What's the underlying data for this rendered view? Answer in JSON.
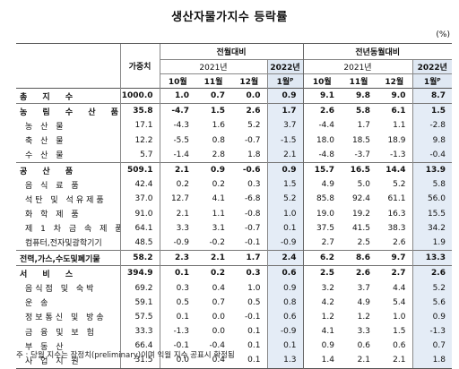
{
  "title": "생산자물가지수 등락률",
  "unit": "(%)",
  "header": {
    "weight": "가중치",
    "mom": "전월대비",
    "yoy": "전년동월대비",
    "y2021": "2021년",
    "y2022": "2022년",
    "months": [
      "10월",
      "11월",
      "12월"
    ],
    "jan_mom": "1월ᴾ",
    "jan_yoy": "1월ᴾ"
  },
  "rows": [
    {
      "name": "총 지 수",
      "w": "1000.0",
      "m": [
        "1.0",
        "0.7",
        "0.0",
        "0.9"
      ],
      "y": [
        "9.1",
        "9.8",
        "9.0",
        "8.7"
      ]
    },
    {
      "name": "농 림 수 산 품",
      "w": "35.8",
      "m": [
        "-4.7",
        "1.5",
        "2.6",
        "1.7"
      ],
      "y": [
        "2.6",
        "5.8",
        "6.1",
        "1.5"
      ]
    },
    {
      "name": "농 산 물",
      "w": "17.1",
      "m": [
        "-4.3",
        "1.6",
        "5.2",
        "3.7"
      ],
      "y": [
        "-4.4",
        "1.7",
        "1.1",
        "-2.8"
      ]
    },
    {
      "name": "축 산 물",
      "w": "12.2",
      "m": [
        "-5.5",
        "0.8",
        "-0.7",
        "-1.5"
      ],
      "y": [
        "18.0",
        "18.5",
        "18.9",
        "9.8"
      ]
    },
    {
      "name": "수 산 물",
      "w": "5.7",
      "m": [
        "-1.4",
        "2.8",
        "1.8",
        "2.1"
      ],
      "y": [
        "-4.8",
        "-3.7",
        "-1.3",
        "-0.4"
      ]
    },
    {
      "name": "공 산 품",
      "w": "509.1",
      "m": [
        "2.1",
        "0.9",
        "-0.6",
        "0.9"
      ],
      "y": [
        "15.7",
        "16.5",
        "14.4",
        "13.9"
      ]
    },
    {
      "name": "음 식 료 품",
      "w": "42.4",
      "m": [
        "0.2",
        "0.2",
        "0.3",
        "1.5"
      ],
      "y": [
        "4.9",
        "5.0",
        "5.2",
        "5.8"
      ]
    },
    {
      "name": "석탄 및 석유제품",
      "w": "37.0",
      "m": [
        "12.7",
        "4.1",
        "-6.8",
        "5.2"
      ],
      "y": [
        "85.8",
        "92.4",
        "61.1",
        "56.0"
      ]
    },
    {
      "name": "화 학 제 품",
      "w": "91.0",
      "m": [
        "2.1",
        "1.1",
        "-0.8",
        "1.0"
      ],
      "y": [
        "19.0",
        "19.2",
        "16.3",
        "15.5"
      ]
    },
    {
      "name": "제 1 차 금 속 제 품",
      "w": "64.1",
      "m": [
        "3.3",
        "3.1",
        "-0.7",
        "0.1"
      ],
      "y": [
        "37.5",
        "41.5",
        "38.3",
        "34.2"
      ]
    },
    {
      "name": "컴퓨터,전자및광학기기",
      "w": "48.5",
      "m": [
        "-0.9",
        "-0.2",
        "-0.1",
        "-0.9"
      ],
      "y": [
        "2.7",
        "2.5",
        "2.6",
        "1.9"
      ]
    },
    {
      "name": "전력,가스,수도및폐기물",
      "w": "58.2",
      "m": [
        "2.3",
        "2.1",
        "1.7",
        "2.4"
      ],
      "y": [
        "6.2",
        "8.6",
        "9.7",
        "13.3"
      ]
    },
    {
      "name": "서 비 스",
      "w": "394.9",
      "m": [
        "0.1",
        "0.2",
        "0.3",
        "0.6"
      ],
      "y": [
        "2.5",
        "2.6",
        "2.7",
        "2.6"
      ]
    },
    {
      "name": "음식점 및 숙박",
      "w": "69.2",
      "m": [
        "0.3",
        "0.4",
        "1.0",
        "0.9"
      ],
      "y": [
        "3.2",
        "3.7",
        "4.4",
        "5.2"
      ]
    },
    {
      "name": "운 송",
      "w": "59.1",
      "m": [
        "0.5",
        "0.7",
        "0.5",
        "0.8"
      ],
      "y": [
        "4.2",
        "4.9",
        "5.4",
        "5.6"
      ]
    },
    {
      "name": "정보통신 및 방송",
      "w": "57.5",
      "m": [
        "0.1",
        "0.0",
        "-0.1",
        "0.6"
      ],
      "y": [
        "1.2",
        "1.2",
        "1.0",
        "0.9"
      ]
    },
    {
      "name": "금 융 및 보 험",
      "w": "33.3",
      "m": [
        "-1.3",
        "0.0",
        "0.1",
        "-0.9"
      ],
      "y": [
        "4.1",
        "3.3",
        "1.5",
        "-1.3"
      ]
    },
    {
      "name": "부 동 산",
      "w": "66.4",
      "m": [
        "-0.1",
        "-0.4",
        "0.1",
        "0.1"
      ],
      "y": [
        "0.9",
        "0.6",
        "0.6",
        "0.7"
      ]
    },
    {
      "name": "사 업 지 원",
      "w": "31.5",
      "m": [
        "0.0",
        "0.4",
        "0.1",
        "1.3"
      ],
      "y": [
        "1.4",
        "2.1",
        "2.1",
        "1.8"
      ]
    }
  ],
  "footnote": "주 : 당월 지수는 잠정치(preliminary)이며 익월 지수 공표시 확정됨"
}
